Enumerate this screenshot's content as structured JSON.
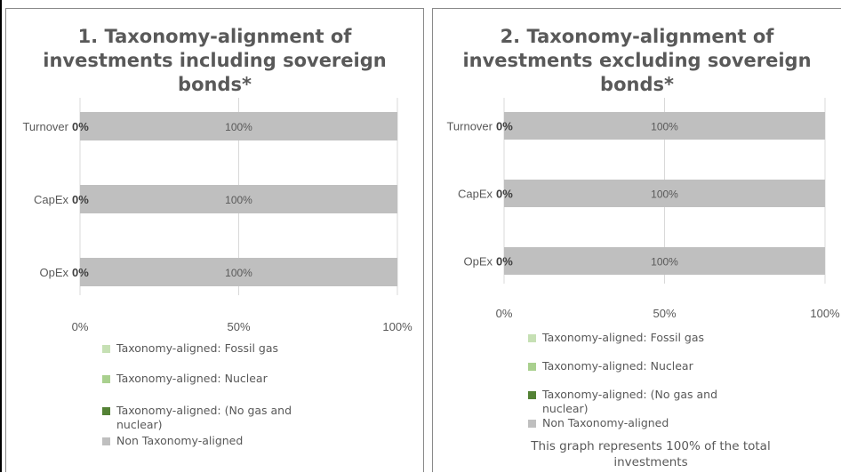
{
  "chart_data": [
    {
      "type": "bar",
      "orientation": "horizontal",
      "stacked": true,
      "title": "1. Taxonomy-alignment of investments including sovereign bonds*",
      "title_lines": [
        "1. Taxonomy-alignment  of",
        "investments including sovereign",
        "bonds*"
      ],
      "categories": [
        "Turnover",
        "CapEx",
        "OpEx"
      ],
      "series": [
        {
          "name": "Taxonomy-aligned: Fossil gas",
          "values": [
            0,
            0,
            0
          ],
          "color": "#c6e0b4"
        },
        {
          "name": "Taxonomy-aligned: Nuclear",
          "values": [
            0,
            0,
            0
          ],
          "color": "#a9d08e"
        },
        {
          "name": "Taxonomy-aligned: (No gas and nuclear)",
          "values": [
            0,
            0,
            0
          ],
          "color": "#548235"
        },
        {
          "name": "Non Taxonomy-aligned",
          "values": [
            100,
            100,
            100
          ],
          "color": "#bfbfbf"
        }
      ],
      "aligned_labels": [
        "0%",
        "0%",
        "0%"
      ],
      "bar_labels": [
        "100%",
        "100%",
        "100%"
      ],
      "xlim": [
        0,
        100
      ],
      "x_ticks": [
        "0%",
        "50%",
        "100%"
      ],
      "legend_position": "bottom"
    },
    {
      "type": "bar",
      "orientation": "horizontal",
      "stacked": true,
      "title": "2. Taxonomy-alignment of investments excluding sovereign bonds*",
      "title_lines": [
        "2. Taxonomy-alignment  of",
        "investments excluding sovereign",
        "bonds*"
      ],
      "categories": [
        "Turnover",
        "CapEx",
        "OpEx"
      ],
      "series": [
        {
          "name": "Taxonomy-aligned: Fossil gas",
          "values": [
            0,
            0,
            0
          ],
          "color": "#c6e0b4"
        },
        {
          "name": "Taxonomy-aligned: Nuclear",
          "values": [
            0,
            0,
            0
          ],
          "color": "#a9d08e"
        },
        {
          "name": "Taxonomy-aligned: (No gas and nuclear)",
          "values": [
            0,
            0,
            0
          ],
          "color": "#548235"
        },
        {
          "name": "Non Taxonomy-aligned",
          "values": [
            100,
            100,
            100
          ],
          "color": "#bfbfbf"
        }
      ],
      "aligned_labels": [
        "0%",
        "0%",
        "0%"
      ],
      "bar_labels": [
        "100%",
        "100%",
        "100%"
      ],
      "xlim": [
        0,
        100
      ],
      "x_ticks": [
        "0%",
        "50%",
        "100%"
      ],
      "legend_position": "bottom",
      "footnote": "This graph represents 100% of the total investments"
    }
  ],
  "legend_labels_wrapped": {
    "no_gas_line1": "Taxonomy-aligned: (No gas and",
    "no_gas_line2": "nuclear)"
  },
  "footnote_lines": [
    "This graph represents 100% of the total",
    "investments"
  ]
}
